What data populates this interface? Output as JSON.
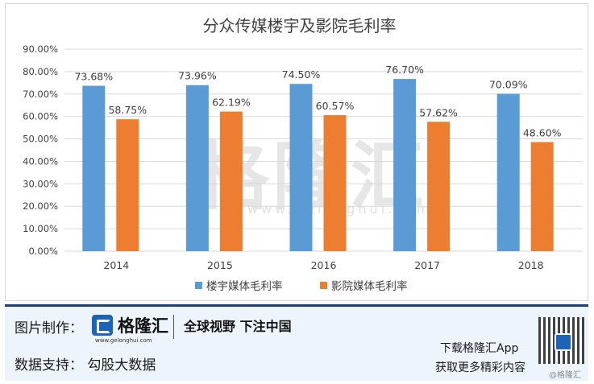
{
  "chart_data": {
    "type": "bar",
    "title": "分众传媒楼宇及影院毛利率",
    "categories": [
      "2014",
      "2015",
      "2016",
      "2017",
      "2018"
    ],
    "series": [
      {
        "name": "楼宇媒体毛利率",
        "values": [
          73.68,
          73.96,
          74.5,
          76.7,
          70.09
        ],
        "labels": [
          "73.68%",
          "73.96%",
          "74.50%",
          "76.70%",
          "70.09%"
        ],
        "color": "#5b9bd5"
      },
      {
        "name": "影院媒体毛利率",
        "values": [
          58.75,
          62.19,
          60.57,
          57.62,
          48.6
        ],
        "labels": [
          "58.75%",
          "62.19%",
          "60.57%",
          "57.62%",
          "48.60%"
        ],
        "color": "#ed7d31"
      }
    ],
    "yticks": [
      "0.00%",
      "10.00%",
      "20.00%",
      "30.00%",
      "40.00%",
      "50.00%",
      "60.00%",
      "70.00%",
      "80.00%",
      "90.00%"
    ],
    "ylim": [
      0,
      90
    ],
    "grid": true,
    "legend": "bottom"
  },
  "watermark": {
    "main": "格隆汇",
    "sub": "www.gelonghui.com"
  },
  "footer": {
    "credit_label": "图片制作：",
    "brand_name": "格隆汇",
    "brand_url": "www.gelonghui.com",
    "slogan": "全球视野 下注中国",
    "source_label": "数据支持：  勾股大数据",
    "download": "下载格隆汇App",
    "more": "获取更多精彩内容",
    "qr_caption": "@格隆汇"
  }
}
